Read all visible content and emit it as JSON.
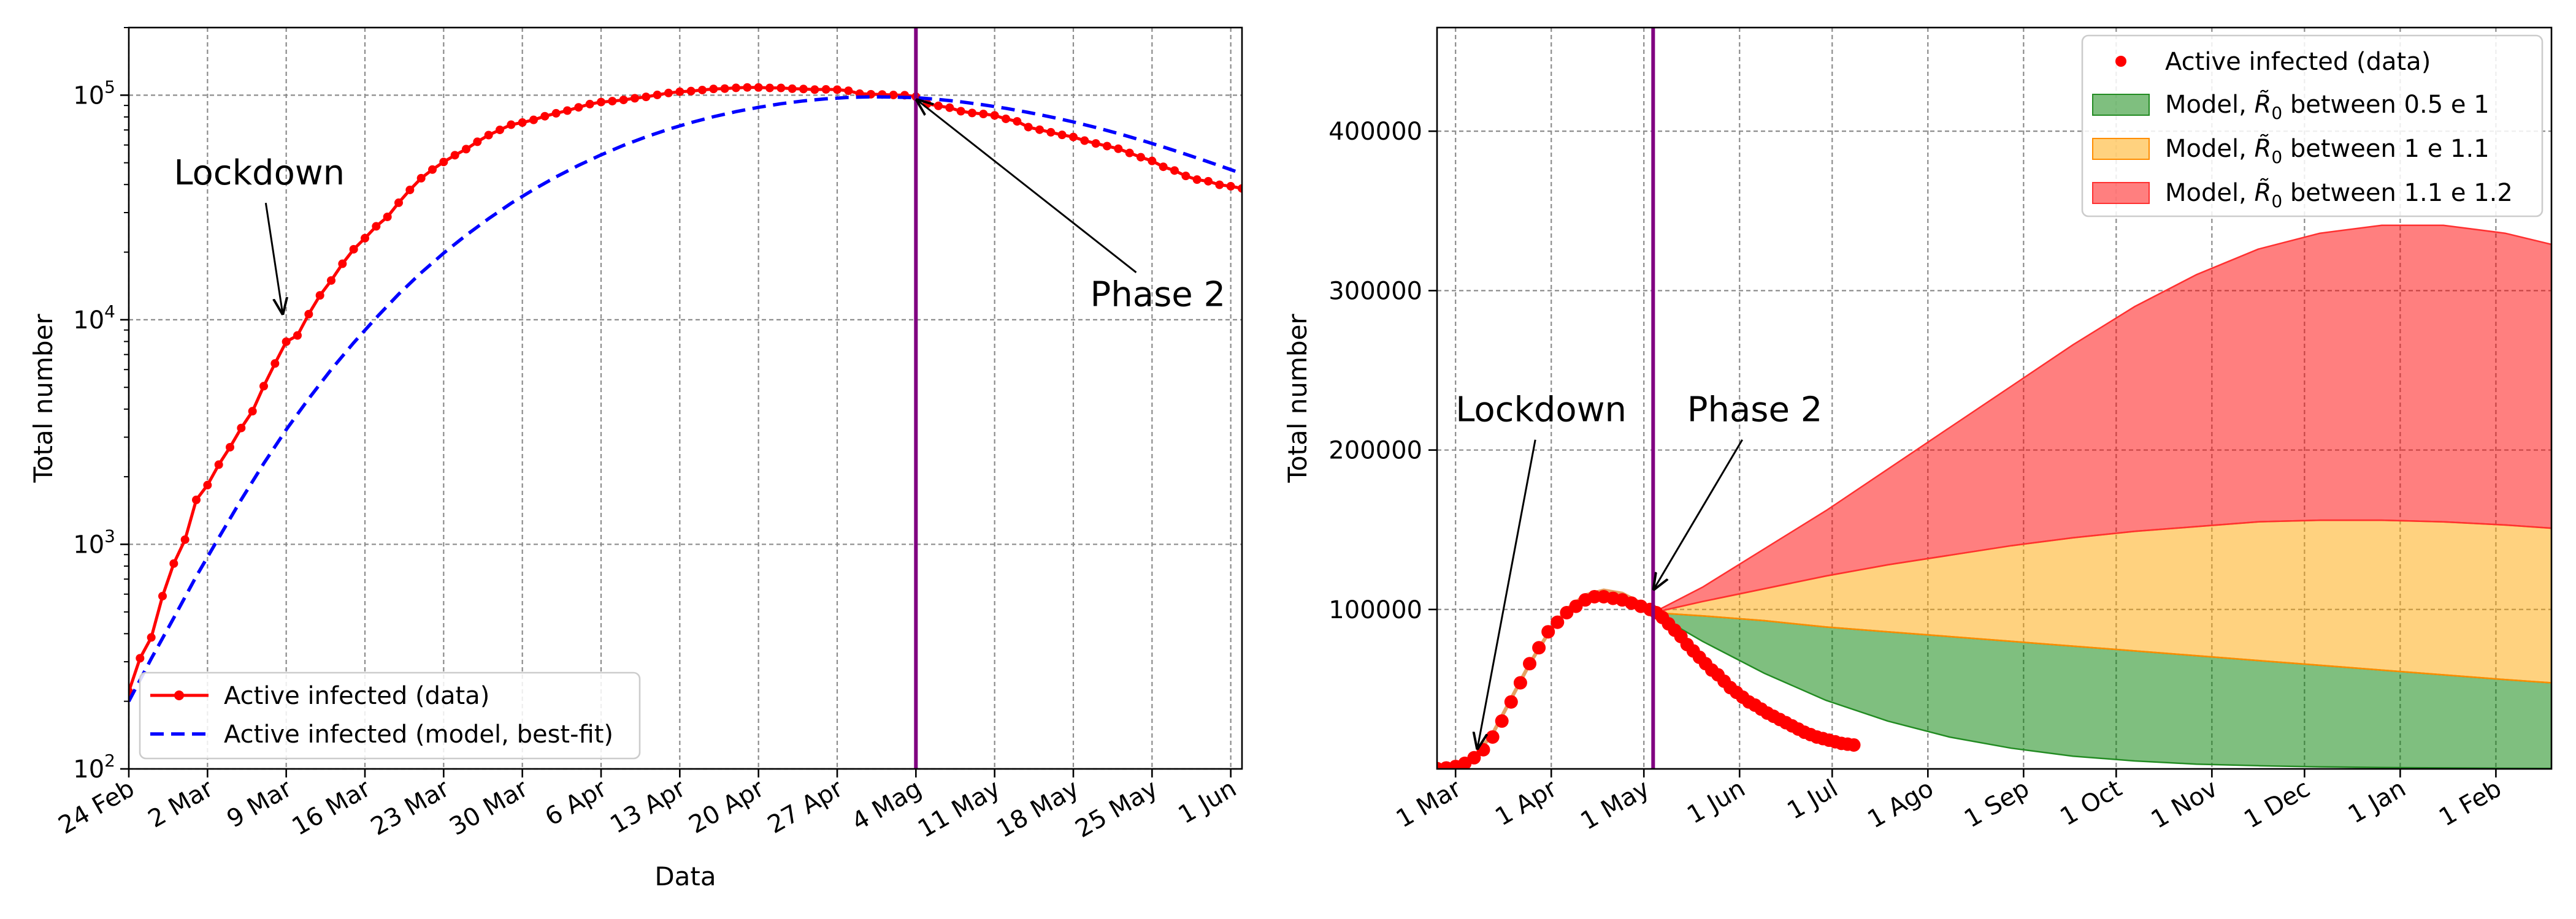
{
  "chart_data": [
    {
      "type": "line",
      "yscale": "log",
      "ylabel": "Total number",
      "xlabel": "Data",
      "ylim": [
        100,
        200000
      ],
      "x_ticks": [
        {
          "day": 0,
          "label": "24 Feb"
        },
        {
          "day": 7,
          "label": "2 Mar"
        },
        {
          "day": 14,
          "label": "9 Mar"
        },
        {
          "day": 21,
          "label": "16 Mar"
        },
        {
          "day": 28,
          "label": "23 Mar"
        },
        {
          "day": 35,
          "label": "30 Mar"
        },
        {
          "day": 42,
          "label": "6 Apr"
        },
        {
          "day": 49,
          "label": "13 Apr"
        },
        {
          "day": 56,
          "label": "20 Apr"
        },
        {
          "day": 63,
          "label": "27 Apr"
        },
        {
          "day": 70,
          "label": "4 Mag"
        },
        {
          "day": 77,
          "label": "11 May"
        },
        {
          "day": 84,
          "label": "18 May"
        },
        {
          "day": 91,
          "label": "25 May"
        },
        {
          "day": 98,
          "label": "1 Jun"
        }
      ],
      "xlim": [
        0,
        99
      ],
      "y_ticks": [
        {
          "value": 100,
          "mant": "10",
          "exp": "2"
        },
        {
          "value": 1000,
          "mant": "10",
          "exp": "3"
        },
        {
          "value": 10000,
          "mant": "10",
          "exp": "4"
        },
        {
          "value": 100000,
          "mant": "10",
          "exp": "5"
        }
      ],
      "vline_day": 70,
      "vline_color": "#800080",
      "series": [
        {
          "name": "Active infected (data)",
          "style": "line-markers",
          "color": "#ff0000",
          "x": [
            0,
            1,
            2,
            3,
            4,
            5,
            6,
            7,
            8,
            9,
            10,
            11,
            12,
            13,
            14,
            15,
            16,
            17,
            18,
            19,
            20,
            21,
            22,
            23,
            24,
            25,
            26,
            27,
            28,
            29,
            30,
            31,
            32,
            33,
            34,
            35,
            36,
            37,
            38,
            39,
            40,
            41,
            42,
            43,
            44,
            45,
            46,
            47,
            48,
            49,
            50,
            51,
            52,
            53,
            54,
            55,
            56,
            57,
            58,
            59,
            60,
            61,
            62,
            63,
            64,
            65,
            66,
            67,
            68,
            69,
            70,
            71,
            72,
            73,
            74,
            75,
            76,
            77,
            78,
            79,
            80,
            81,
            82,
            83,
            84,
            85,
            86,
            87,
            88,
            89,
            90,
            91,
            92,
            93,
            94,
            95,
            96,
            97,
            98,
            99
          ],
          "values": [
            221,
            311,
            385,
            588,
            821,
            1049,
            1577,
            1835,
            2263,
            2706,
            3296,
            3916,
            5061,
            6387,
            7985,
            8514,
            10590,
            12839,
            14955,
            17750,
            20603,
            23073,
            26062,
            28710,
            33190,
            37860,
            42681,
            46638,
            50418,
            54030,
            57521,
            62013,
            66414,
            70065,
            73880,
            75528,
            77635,
            80572,
            83049,
            85388,
            88274,
            91246,
            93187,
            94067,
            95262,
            96877,
            98273,
            100269,
            102253,
            103616,
            104291,
            105418,
            106607,
            106962,
            107771,
            108257,
            108237,
            107709,
            107699,
            106848,
            106527,
            105847,
            106103,
            105813,
            104657,
            101551,
            100943,
            100704,
            100179,
            99980,
            98467,
            91528,
            89624,
            87961,
            84842,
            83324,
            82488,
            81266,
            78457,
            76440,
            72070,
            70187,
            68351,
            66553,
            65129,
            62752,
            60960,
            59322,
            57752,
            55300,
            52942,
            50966,
            47986,
            46175,
            43691,
            42075,
            41367,
            39893,
            39297,
            38429
          ]
        },
        {
          "name": "Active infected (model, best-fit)",
          "style": "dashed",
          "color": "#0000ff",
          "x": [
            0,
            2,
            4,
            6,
            8,
            10,
            12,
            14,
            16,
            18,
            20,
            22,
            24,
            26,
            28,
            30,
            32,
            34,
            36,
            38,
            40,
            42,
            44,
            46,
            48,
            50,
            52,
            54,
            56,
            58,
            60,
            62,
            64,
            66,
            68,
            70,
            72,
            74,
            76,
            78,
            80,
            82,
            84,
            86,
            88,
            90,
            92,
            94,
            96,
            98,
            99
          ],
          "values": [
            200,
            310,
            470,
            720,
            1070,
            1580,
            2290,
            3240,
            4450,
            6000,
            7900,
            10200,
            13000,
            16200,
            19800,
            23800,
            28200,
            33000,
            38000,
            43300,
            48700,
            54200,
            59800,
            65200,
            70500,
            75500,
            80200,
            84500,
            88300,
            91600,
            94300,
            96300,
            97700,
            98300,
            98100,
            97500,
            95700,
            93400,
            90600,
            87400,
            83800,
            80000,
            76000,
            71800,
            67500,
            63100,
            58800,
            54600,
            50500,
            46600,
            44700
          ]
        }
      ],
      "annotations": [
        {
          "text": "Lockdown",
          "text_day": 4,
          "text_value": 40000,
          "arrow_day": 13.7,
          "arrow_value": 10500
        },
        {
          "text": "Phase 2",
          "text_day": 85.5,
          "text_value": 11500,
          "arrow_day": 70,
          "arrow_value": 96000
        }
      ],
      "legend": {
        "position": "bottom-left"
      }
    },
    {
      "type": "area",
      "ylabel": "Total number",
      "xlabel": "",
      "ylim": [
        0,
        465000
      ],
      "xlim": [
        -6,
        355
      ],
      "x_ticks": [
        {
          "day": 0,
          "label": "1 Mar"
        },
        {
          "day": 31,
          "label": "1 Apr"
        },
        {
          "day": 61,
          "label": "1 May"
        },
        {
          "day": 92,
          "label": "1 Jun"
        },
        {
          "day": 122,
          "label": "1 Jul"
        },
        {
          "day": 153,
          "label": "1 Ago"
        },
        {
          "day": 184,
          "label": "1 Sep"
        },
        {
          "day": 214,
          "label": "1 Oct"
        },
        {
          "day": 245,
          "label": "1 Nov"
        },
        {
          "day": 275,
          "label": "1 Dec"
        },
        {
          "day": 306,
          "label": "1 Jan"
        },
        {
          "day": 337,
          "label": "1 Feb"
        }
      ],
      "y_ticks": [
        {
          "value": 100000,
          "label": "100000"
        },
        {
          "value": 200000,
          "label": "200000"
        },
        {
          "value": 300000,
          "label": "300000"
        },
        {
          "value": 400000,
          "label": "400000"
        }
      ],
      "vline_day": 64,
      "vline_color": "#800080",
      "data_series": {
        "name": "Active infected (data)",
        "color": "#ff0000",
        "x": [
          -6,
          -3,
          0,
          3,
          6,
          9,
          12,
          15,
          18,
          21,
          24,
          27,
          30,
          33,
          36,
          39,
          42,
          45,
          48,
          51,
          54,
          57,
          60,
          63,
          65,
          67,
          69,
          71,
          73,
          75,
          77,
          79,
          81,
          83,
          85,
          87,
          89,
          91,
          93,
          95,
          97,
          99,
          101,
          103,
          105,
          107,
          109,
          111,
          113,
          115,
          117,
          119,
          121,
          123,
          125,
          127,
          129
        ],
        "values": [
          200,
          600,
          1500,
          3500,
          7000,
          12000,
          20000,
          30000,
          42000,
          54000,
          66000,
          76000,
          86000,
          92000,
          98000,
          102000,
          106000,
          108000,
          108000,
          107000,
          106000,
          104000,
          102000,
          100000,
          98000,
          95000,
          91000,
          87000,
          83000,
          78000,
          74000,
          70000,
          66000,
          62000,
          59000,
          55000,
          51000,
          48000,
          45000,
          42000,
          40000,
          37500,
          35000,
          33000,
          31000,
          29000,
          27000,
          25000,
          23000,
          21500,
          20000,
          19000,
          18000,
          17000,
          16000,
          15500,
          15000
        ]
      },
      "model_fit": {
        "x": [
          -6,
          0,
          6,
          12,
          18,
          24,
          30,
          36,
          42,
          48,
          54,
          60,
          64
        ],
        "values": [
          200,
          1500,
          7500,
          22000,
          44000,
          66000,
          85000,
          100000,
          109000,
          112000,
          110000,
          104000,
          98000
        ]
      },
      "bands": [
        {
          "name": "Model, R0 between 0.5 e 1",
          "fill": "#008000",
          "edge": "#228b22",
          "x": [
            64,
            80,
            100,
            120,
            140,
            160,
            180,
            200,
            220,
            240,
            260,
            280,
            300,
            320,
            340,
            355
          ],
          "lower": [
            98000,
            80000,
            60000,
            43000,
            30000,
            20000,
            13000,
            8000,
            5000,
            3000,
            2000,
            1300,
            900,
            600,
            400,
            300
          ],
          "upper": [
            98000,
            96000,
            93000,
            89000,
            86000,
            83000,
            80000,
            77000,
            74000,
            71000,
            68000,
            65000,
            62000,
            59000,
            56000,
            54000
          ]
        },
        {
          "name": "Model, R0 between 1 e 1.1",
          "fill": "#ffa500",
          "edge": "#ff8c00",
          "x": [
            64,
            80,
            100,
            120,
            140,
            160,
            180,
            200,
            220,
            240,
            260,
            280,
            300,
            320,
            340,
            355
          ],
          "lower": [
            98000,
            96000,
            93000,
            89000,
            86000,
            83000,
            80000,
            77000,
            74000,
            71000,
            68000,
            65000,
            62000,
            59000,
            56000,
            54000
          ],
          "upper": [
            98000,
            105000,
            113000,
            121000,
            128000,
            134000,
            140000,
            145000,
            149000,
            152000,
            155000,
            156000,
            156000,
            155000,
            153000,
            151000
          ]
        },
        {
          "name": "Model, R0 between 1.1 e 1.2",
          "fill": "#ff0000",
          "edge": "#ff3030",
          "x": [
            64,
            80,
            100,
            120,
            140,
            160,
            180,
            200,
            220,
            240,
            260,
            280,
            300,
            320,
            340,
            355
          ],
          "lower": [
            98000,
            105000,
            113000,
            121000,
            128000,
            134000,
            140000,
            145000,
            149000,
            152000,
            155000,
            156000,
            156000,
            155000,
            153000,
            151000
          ],
          "upper": [
            98000,
            114000,
            138000,
            162000,
            188000,
            214000,
            240000,
            266000,
            290000,
            310000,
            326000,
            336000,
            341000,
            341000,
            336000,
            329000
          ]
        }
      ],
      "annotations": [
        {
          "text": "Lockdown",
          "text_day": 0,
          "text_value": 218000,
          "arrow_day": 7,
          "arrow_value": 12000
        },
        {
          "text": "Phase 2",
          "text_day": 75,
          "text_value": 218000,
          "arrow_day": 64,
          "arrow_value": 112000
        }
      ],
      "legend": {
        "position": "top-right"
      }
    }
  ]
}
